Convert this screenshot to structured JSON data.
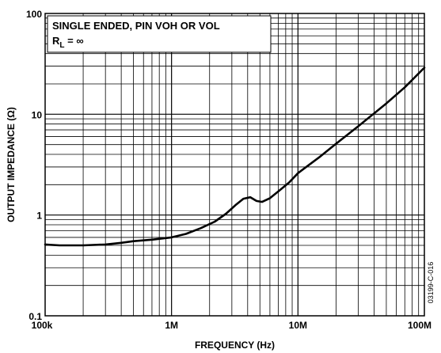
{
  "chart_data": {
    "type": "line",
    "xlabel": "FREQUENCY (Hz)",
    "ylabel": "OUTPUT IMPEDANCE (Ω)",
    "x_scale": "log",
    "y_scale": "log",
    "xlim": [
      100000,
      100000000
    ],
    "ylim": [
      0.1,
      100
    ],
    "x_ticks": [
      {
        "value": 100000,
        "label": "100k"
      },
      {
        "value": 1000000,
        "label": "1M"
      },
      {
        "value": 10000000,
        "label": "10M"
      },
      {
        "value": 100000000,
        "label": "100M"
      }
    ],
    "y_ticks": [
      {
        "value": 0.1,
        "label": "0.1"
      },
      {
        "value": 1,
        "label": "1"
      },
      {
        "value": 10,
        "label": "10"
      },
      {
        "value": 100,
        "label": "100"
      }
    ],
    "grid": true,
    "annotation": {
      "line1": "SINGLE ENDED, PIN VOH OR VOL",
      "line2_main": "R",
      "line2_sub": "L",
      "line2_rest": " = ∞"
    },
    "figure_code": "03199-C-016",
    "series": [
      {
        "x": [
          100000,
          130000,
          200000,
          300000,
          400000,
          500000,
          700000,
          1000000,
          1300000,
          1700000,
          2200000,
          2700000,
          3200000,
          3700000,
          4200000,
          4700000,
          5200000,
          6000000,
          7000000,
          8500000,
          10000000,
          15000000,
          20000000,
          30000000,
          50000000,
          70000000,
          100000000
        ],
        "y": [
          0.51,
          0.5,
          0.5,
          0.51,
          0.53,
          0.55,
          0.57,
          0.6,
          0.65,
          0.74,
          0.86,
          1.03,
          1.25,
          1.45,
          1.5,
          1.38,
          1.35,
          1.47,
          1.72,
          2.1,
          2.6,
          3.8,
          5.1,
          7.6,
          12.8,
          18.5,
          29
        ]
      }
    ]
  }
}
